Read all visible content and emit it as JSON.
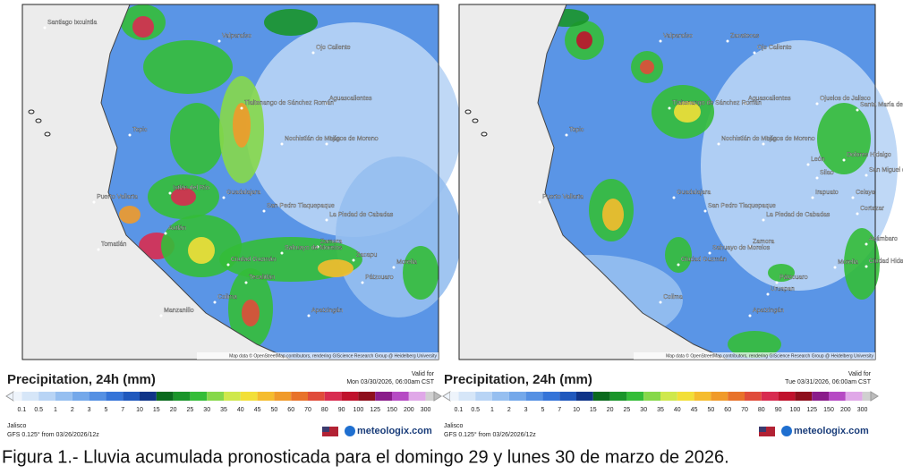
{
  "panels": [
    {
      "title": "Precipitation, 24h (mm)",
      "valid_for": "Valid for",
      "valid_date": "Mon 03/30/2026, 06:00am CST",
      "region": "Jalisco",
      "model": "GFS 0.125° from 03/26/2026/12z",
      "brand": "meteologix.com",
      "attribution": "Map data © OpenStreetMap contributors, rendering GIScience Research Group @ Heidelberg University",
      "places": [
        "Santiago Ixcuintla",
        "Valparaíso",
        "Ojo Caliente",
        "Aguascalientes",
        "Tlaltenango de Sánchez Román",
        "Nochistlán de Mejía",
        "Lagos de Moreno",
        "Tepic",
        "Ixtlán del Río",
        "Puerto Vallarta",
        "Guadalajara",
        "San Pedro Tlaquepaque",
        "La Piedad de Cabadas",
        "Tomatlán",
        "Autlán",
        "Zamora",
        "Zacapu",
        "Morelia",
        "Ciudad Guzmán",
        "Sahuayo de Morelos",
        "Colima",
        "Tecalitlán",
        "Pátzcuaro",
        "Apatzingán",
        "Manzanillo"
      ]
    },
    {
      "title": "Precipitation, 24h (mm)",
      "valid_for": "Valid for",
      "valid_date": "Tue 03/31/2026, 06:00am CST",
      "region": "Jalisco",
      "model": "GFS 0.125° from 03/26/2026/12z",
      "brand": "meteologix.com",
      "attribution": "Map data © OpenStreetMap contributors, rendering GIScience Research Group @ Heidelberg University",
      "places": [
        "Zacatecas",
        "Valparaíso",
        "Ojo Caliente",
        "Aguascalientes",
        "Ojuelos de Jalisco",
        "Santa María del Río",
        "Tlaltenango de Sánchez Román",
        "Nochistlán de Mejía",
        "Lagos de Moreno",
        "León",
        "Silao",
        "Dolores Hidalgo",
        "San Miguel de Allende",
        "Irapuato",
        "Celaya",
        "Tepic",
        "Puerto Vallarta",
        "Guadalajara",
        "San Pedro Tlaquepaque",
        "La Piedad de Cabadas",
        "Zamora",
        "Acámbaro",
        "Ciudad Guzmán",
        "Sahuayo de Morelos",
        "Morelia",
        "Ciudad Hidalgo",
        "Colima",
        "Pátzcuaro",
        "Uruapan",
        "Apatzingán",
        "Cortazar"
      ]
    }
  ],
  "legend": {
    "ticks": [
      0.1,
      0.5,
      1,
      2,
      3,
      5,
      7,
      10,
      15,
      20,
      25,
      30,
      35,
      40,
      45,
      50,
      60,
      70,
      80,
      90,
      100,
      125,
      150,
      200,
      300
    ],
    "colors": [
      "#d6e6f8",
      "#b8d4f5",
      "#96bff0",
      "#74a8ea",
      "#5590e3",
      "#3574d8",
      "#1f58bd",
      "#0f3488",
      "#0a6a1e",
      "#1a952a",
      "#34bd38",
      "#86d84a",
      "#cfe84c",
      "#f2df38",
      "#f5bc2e",
      "#f09a2a",
      "#e8722a",
      "#e04c3a",
      "#d82c50",
      "#c0122c",
      "#8e0f1c",
      "#8a1c8a",
      "#b64ac4",
      "#e0a8e8"
    ]
  },
  "caption": "Figura 1.- Lluvia acumulada pronosticada para el domingo 29 y lunes 30 de marzo de 2026."
}
